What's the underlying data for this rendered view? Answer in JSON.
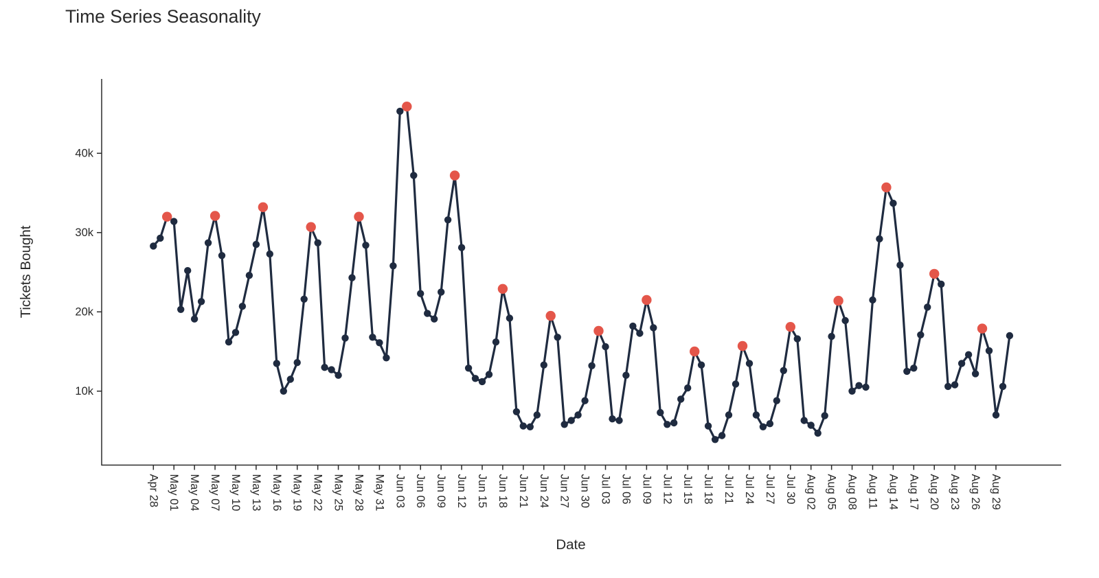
{
  "page": {
    "background": "#ffffff"
  },
  "chart_data": {
    "type": "line",
    "title": "Time Series Seasonality",
    "xlabel": "Date",
    "ylabel": "Tickets Bought",
    "unit": "thousands of tickets",
    "grid": false,
    "legend": false,
    "x_tick_angle": 90,
    "x_tick_every_days": 3,
    "y_tick_labels": [
      "10k",
      "20k",
      "30k",
      "40k"
    ],
    "y_tick_values": [
      10000,
      20000,
      30000,
      40000
    ],
    "ylim_tickets": [
      500,
      49200
    ],
    "dates": [
      "Apr 28",
      "Apr 29",
      "Apr 30",
      "May 01",
      "May 02",
      "May 03",
      "May 04",
      "May 05",
      "May 06",
      "May 07",
      "May 08",
      "May 09",
      "May 10",
      "May 11",
      "May 12",
      "May 13",
      "May 14",
      "May 15",
      "May 16",
      "May 17",
      "May 18",
      "May 19",
      "May 20",
      "May 21",
      "May 22",
      "May 23",
      "May 24",
      "May 25",
      "May 26",
      "May 27",
      "May 28",
      "May 29",
      "May 30",
      "May 31",
      "Jun 01",
      "Jun 02",
      "Jun 03",
      "Jun 04",
      "Jun 05",
      "Jun 06",
      "Jun 07",
      "Jun 08",
      "Jun 09",
      "Jun 10",
      "Jun 11",
      "Jun 12",
      "Jun 13",
      "Jun 14",
      "Jun 15",
      "Jun 16",
      "Jun 17",
      "Jun 18",
      "Jun 19",
      "Jun 20",
      "Jun 21",
      "Jun 22",
      "Jun 23",
      "Jun 24",
      "Jun 25",
      "Jun 26",
      "Jun 27",
      "Jun 28",
      "Jun 29",
      "Jun 30",
      "Jul 01",
      "Jul 02",
      "Jul 03",
      "Jul 04",
      "Jul 05",
      "Jul 06",
      "Jul 07",
      "Jul 08",
      "Jul 09",
      "Jul 10",
      "Jul 11",
      "Jul 12",
      "Jul 13",
      "Jul 14",
      "Jul 15",
      "Jul 16",
      "Jul 17",
      "Jul 18",
      "Jul 19",
      "Jul 20",
      "Jul 21",
      "Jul 22",
      "Jul 23",
      "Jul 24",
      "Jul 25",
      "Jul 26",
      "Jul 27",
      "Jul 28",
      "Jul 29",
      "Jul 30",
      "Jul 31",
      "Aug 01",
      "Aug 02",
      "Aug 03",
      "Aug 04",
      "Aug 05",
      "Aug 06",
      "Aug 07",
      "Aug 08",
      "Aug 09",
      "Aug 10",
      "Aug 11",
      "Aug 12",
      "Aug 13",
      "Aug 14",
      "Aug 15",
      "Aug 16",
      "Aug 17",
      "Aug 18",
      "Aug 19",
      "Aug 20",
      "Aug 21",
      "Aug 22",
      "Aug 23",
      "Aug 24",
      "Aug 25",
      "Aug 26",
      "Aug 27",
      "Aug 28",
      "Aug 29",
      "Aug 30",
      "Aug 31"
    ],
    "values": [
      28.3,
      29.3,
      32.0,
      31.4,
      20.3,
      25.2,
      19.1,
      21.3,
      28.7,
      32.1,
      27.1,
      16.2,
      17.4,
      20.7,
      24.6,
      28.5,
      33.2,
      27.3,
      13.5,
      10.0,
      11.5,
      13.6,
      21.6,
      30.7,
      28.7,
      13.0,
      12.7,
      12.0,
      16.7,
      24.3,
      32.0,
      28.4,
      16.8,
      16.1,
      14.2,
      25.8,
      45.3,
      45.9,
      37.2,
      22.3,
      19.8,
      19.1,
      22.5,
      31.6,
      37.2,
      28.1,
      12.9,
      11.6,
      11.2,
      12.1,
      16.2,
      22.9,
      19.2,
      7.4,
      5.6,
      5.5,
      7.0,
      13.3,
      19.5,
      16.8,
      5.8,
      6.3,
      7.0,
      8.8,
      13.2,
      17.6,
      15.6,
      6.5,
      6.3,
      12.0,
      18.2,
      17.3,
      21.5,
      18.0,
      7.3,
      5.8,
      6.0,
      9.0,
      10.4,
      15.0,
      13.3,
      5.6,
      3.9,
      4.4,
      7.0,
      10.9,
      15.7,
      13.5,
      7.0,
      5.5,
      5.9,
      8.8,
      12.6,
      18.1,
      16.6,
      6.3,
      5.7,
      4.7,
      6.9,
      16.9,
      21.4,
      18.9,
      10.0,
      10.7,
      10.5,
      21.5,
      29.2,
      35.7,
      33.7,
      25.9,
      12.5,
      12.9,
      17.1,
      20.6,
      24.8,
      23.5,
      10.6,
      10.8,
      13.5,
      14.6,
      12.2,
      17.9,
      15.1,
      7.0,
      10.6,
      17.0
    ],
    "peak_indices": [
      2,
      9,
      16,
      23,
      30,
      37,
      44,
      51,
      58,
      65,
      72,
      79,
      86,
      93,
      100,
      107,
      114,
      121
    ],
    "colors": {
      "line": "#1f2b40",
      "marker": "#1f2b40",
      "peak_marker": "#e4564a",
      "axis": "#2a2a2a",
      "tick_label": "#2a2a2a",
      "title": "#2a2a2a"
    },
    "marker_radius_px": 5.2,
    "peak_marker_radius_px": 7.2
  }
}
